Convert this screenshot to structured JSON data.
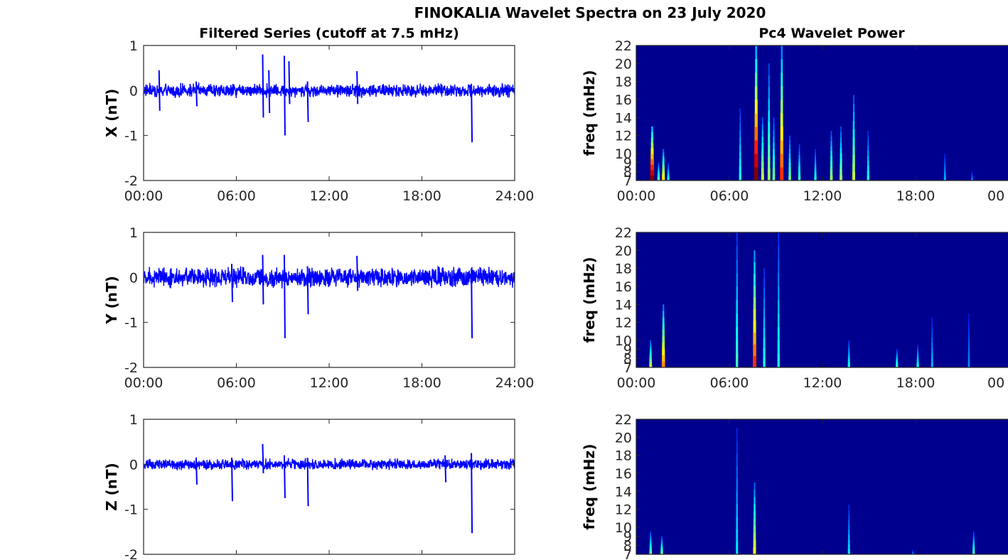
{
  "figure": {
    "suptitle": "FINOKALIA Wavelet Spectra on 23 July 2020",
    "left_title": "Filtered Series (cutoff at 7.5 mHz)",
    "right_title": "Pc4 Wavelet Power"
  },
  "colors": {
    "series": "#0000ff",
    "spectrogram_background": "#00008f",
    "axis": "#262626"
  },
  "chart_data": [
    {
      "type": "line",
      "panel": "X",
      "ylabel": "X (nT)",
      "ylim": [
        -2,
        1
      ],
      "yticks": [
        "1",
        "0",
        "-1",
        "-2"
      ],
      "xticks": [
        "00:00",
        "06:00",
        "12:00",
        "18:00",
        "24:00"
      ],
      "xlim_hours": [
        0,
        24
      ],
      "noise_band": 0.12,
      "spikes": [
        {
          "t": 1.0,
          "high": 0.45,
          "low": -0.45
        },
        {
          "t": 3.4,
          "high": 0.2,
          "low": -0.35
        },
        {
          "t": 7.7,
          "high": 0.8,
          "low": -0.6
        },
        {
          "t": 8.1,
          "high": 0.45,
          "low": -0.5
        },
        {
          "t": 9.1,
          "high": 0.77,
          "low": -1.0
        },
        {
          "t": 9.4,
          "high": 0.65,
          "low": -0.3
        },
        {
          "t": 10.6,
          "high": 0.2,
          "low": -0.7
        },
        {
          "t": 13.8,
          "high": 0.43,
          "low": -0.3
        },
        {
          "t": 21.2,
          "high": 0.15,
          "low": -1.15
        }
      ]
    },
    {
      "type": "line",
      "panel": "Y",
      "ylabel": "Y (nT)",
      "ylim": [
        -2,
        1
      ],
      "yticks": [
        "1",
        "0",
        "-1",
        "-2"
      ],
      "xticks": [
        "00:00",
        "06:00",
        "12:00",
        "18:00",
        "24:00"
      ],
      "xlim_hours": [
        0,
        24
      ],
      "noise_band": 0.18,
      "spikes": [
        {
          "t": 5.7,
          "high": 0.3,
          "low": -0.55
        },
        {
          "t": 7.7,
          "high": 0.5,
          "low": -0.6
        },
        {
          "t": 9.1,
          "high": 0.5,
          "low": -1.35
        },
        {
          "t": 10.6,
          "high": 0.25,
          "low": -0.82
        },
        {
          "t": 13.8,
          "high": 0.48,
          "low": -0.3
        },
        {
          "t": 21.2,
          "high": 0.2,
          "low": -1.35
        }
      ]
    },
    {
      "type": "line",
      "panel": "Z",
      "ylabel": "Z (nT)",
      "ylim": [
        -2,
        1
      ],
      "yticks": [
        "1",
        "0",
        "-1",
        "-2"
      ],
      "xticks": [],
      "xlim_hours": [
        0,
        24
      ],
      "noise_band": 0.1,
      "spikes": [
        {
          "t": 3.4,
          "high": 0.15,
          "low": -0.45
        },
        {
          "t": 5.7,
          "high": 0.15,
          "low": -0.82
        },
        {
          "t": 7.7,
          "high": 0.45,
          "low": -0.2
        },
        {
          "t": 9.1,
          "high": 0.2,
          "low": -0.75
        },
        {
          "t": 10.6,
          "high": 0.15,
          "low": -0.93
        },
        {
          "t": 19.5,
          "high": 0.2,
          "low": -0.4
        },
        {
          "t": 21.2,
          "high": 0.25,
          "low": -1.53
        }
      ]
    },
    {
      "type": "heatmap",
      "panel": "X",
      "ylabel": "freq (mHz)",
      "ylim": [
        7,
        22
      ],
      "yticks": [
        "22",
        "20",
        "18",
        "16",
        "14",
        "12",
        "10",
        "9",
        "8",
        "7"
      ],
      "xticks": [
        "00:00",
        "06:00",
        "12:00",
        "18:00",
        "00"
      ],
      "events": [
        {
          "t": 1.0,
          "f_top": 13,
          "intensity": 1.0
        },
        {
          "t": 1.4,
          "f_top": 9,
          "intensity": 0.4
        },
        {
          "t": 1.7,
          "f_top": 10.5,
          "intensity": 0.6
        },
        {
          "t": 2.0,
          "f_top": 9,
          "intensity": 0.3
        },
        {
          "t": 6.5,
          "f_top": 15,
          "intensity": 0.3
        },
        {
          "t": 7.5,
          "f_top": 22,
          "intensity": 1.0
        },
        {
          "t": 7.9,
          "f_top": 14,
          "intensity": 0.5
        },
        {
          "t": 8.3,
          "f_top": 20,
          "intensity": 0.45
        },
        {
          "t": 8.6,
          "f_top": 14,
          "intensity": 0.4
        },
        {
          "t": 9.1,
          "f_top": 22,
          "intensity": 0.8
        },
        {
          "t": 9.6,
          "f_top": 12,
          "intensity": 0.4
        },
        {
          "t": 10.2,
          "f_top": 11,
          "intensity": 0.35
        },
        {
          "t": 11.2,
          "f_top": 10.5,
          "intensity": 0.3
        },
        {
          "t": 12.2,
          "f_top": 12.5,
          "intensity": 0.45
        },
        {
          "t": 12.8,
          "f_top": 13,
          "intensity": 0.45
        },
        {
          "t": 13.6,
          "f_top": 16.5,
          "intensity": 0.5
        },
        {
          "t": 14.5,
          "f_top": 12.5,
          "intensity": 0.3
        },
        {
          "t": 19.3,
          "f_top": 10,
          "intensity": 0.2
        },
        {
          "t": 21.0,
          "f_top": 8,
          "intensity": 0.15
        }
      ]
    },
    {
      "type": "heatmap",
      "panel": "Y",
      "ylabel": "freq (mHz)",
      "ylim": [
        7,
        22
      ],
      "yticks": [
        "22",
        "20",
        "18",
        "16",
        "14",
        "12",
        "10",
        "9",
        "8",
        "7"
      ],
      "xticks": [
        "00:00",
        "06:00",
        "12:00",
        "18:00",
        "00"
      ],
      "events": [
        {
          "t": 0.9,
          "f_top": 10,
          "intensity": 0.5
        },
        {
          "t": 1.7,
          "f_top": 14,
          "intensity": 0.7
        },
        {
          "t": 6.3,
          "f_top": 22,
          "intensity": 0.35
        },
        {
          "t": 7.4,
          "f_top": 20,
          "intensity": 0.8
        },
        {
          "t": 8.0,
          "f_top": 18,
          "intensity": 0.3
        },
        {
          "t": 8.9,
          "f_top": 22,
          "intensity": 0.3
        },
        {
          "t": 13.3,
          "f_top": 10,
          "intensity": 0.3
        },
        {
          "t": 16.3,
          "f_top": 9,
          "intensity": 0.35
        },
        {
          "t": 17.6,
          "f_top": 9.5,
          "intensity": 0.3
        },
        {
          "t": 18.5,
          "f_top": 12.5,
          "intensity": 0.2
        },
        {
          "t": 20.8,
          "f_top": 13,
          "intensity": 0.15
        }
      ]
    },
    {
      "type": "heatmap",
      "panel": "Z",
      "ylabel": "freq (mHz)",
      "ylim": [
        7,
        22
      ],
      "yticks": [
        "22",
        "20",
        "18",
        "16",
        "14",
        "12",
        "10",
        "9",
        "8",
        "7"
      ],
      "xticks": [],
      "events": [
        {
          "t": 0.9,
          "f_top": 9.5,
          "intensity": 0.4
        },
        {
          "t": 1.6,
          "f_top": 9,
          "intensity": 0.4
        },
        {
          "t": 6.3,
          "f_top": 21,
          "intensity": 0.25
        },
        {
          "t": 7.4,
          "f_top": 15,
          "intensity": 0.55
        },
        {
          "t": 13.3,
          "f_top": 12.5,
          "intensity": 0.25
        },
        {
          "t": 17.3,
          "f_top": 7.5,
          "intensity": 0.15
        },
        {
          "t": 21.1,
          "f_top": 9.5,
          "intensity": 0.35
        }
      ]
    }
  ]
}
